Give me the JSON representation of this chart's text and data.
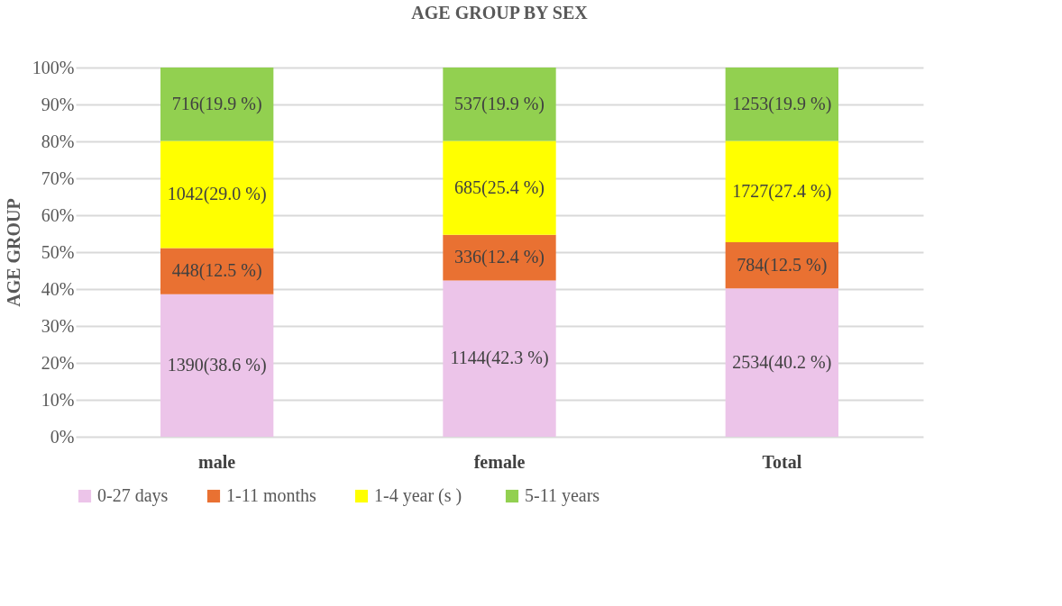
{
  "chart_data": {
    "type": "bar",
    "title": "AGE GROUP BY SEX",
    "ylabel": "AGE GROUP",
    "categories": [
      "male",
      "female",
      "Total"
    ],
    "stacked": true,
    "series": [
      {
        "name": "0-27 days",
        "color": "#ecc4e9",
        "values": [
          38.6,
          42.3,
          40.2
        ],
        "value_labels": [
          "1390(38.6 %)",
          "1144(42.3 %)",
          "2534(40.2 %)"
        ]
      },
      {
        "name": "1-11 months",
        "color": "#e97132",
        "values": [
          12.5,
          12.4,
          12.5
        ],
        "value_labels": [
          "448(12.5 %)",
          "336(12.4 %)",
          "784(12.5 %)"
        ]
      },
      {
        "name": "1-4  year (s )",
        "color": "#ffff00",
        "values": [
          29.0,
          25.4,
          27.4
        ],
        "value_labels": [
          "1042(29.0 %)",
          "685(25.4 %)",
          "1727(27.4 %)"
        ]
      },
      {
        "name": "5-11 years",
        "color": "#92d050",
        "values": [
          19.9,
          19.9,
          19.9
        ],
        "value_labels": [
          "716(19.9 %)",
          "537(19.9 %)",
          "1253(19.9 %)"
        ]
      }
    ],
    "ylim": [
      0,
      100
    ],
    "yticks": [
      {
        "value": 0,
        "label": "0%"
      },
      {
        "value": 10,
        "label": "10%"
      },
      {
        "value": 20,
        "label": "20%"
      },
      {
        "value": 30,
        "label": "30%"
      },
      {
        "value": 40,
        "label": "40%"
      },
      {
        "value": 50,
        "label": "50%"
      },
      {
        "value": 60,
        "label": "60%"
      },
      {
        "value": 70,
        "label": "70%"
      },
      {
        "value": 80,
        "label": "80%"
      },
      {
        "value": 90,
        "label": "90%"
      },
      {
        "value": 100,
        "label": "100%"
      }
    ],
    "grid": "y",
    "legend": "bottom"
  }
}
